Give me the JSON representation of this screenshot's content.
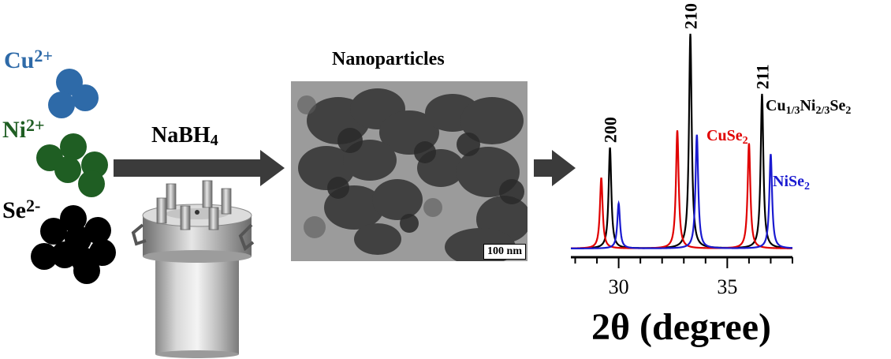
{
  "ions": {
    "cu": {
      "symbol": "Cu",
      "charge": "2+",
      "color": "#2e6aa8"
    },
    "ni": {
      "symbol": "Ni",
      "charge": "2+",
      "color": "#1f5e23"
    },
    "se": {
      "symbol": "Se",
      "charge": "2-",
      "color": "#000000"
    }
  },
  "reagent": {
    "name": "NaBH",
    "subscript": "4"
  },
  "tem": {
    "title": "Nanoparticles",
    "scale_bar": "100 nm"
  },
  "chart_data": {
    "type": "line",
    "xlabel": "2θ (degree)",
    "xticks": [
      "30",
      "35"
    ],
    "xlim": [
      27.8,
      38.0
    ],
    "series": [
      {
        "name": "Cu1/3Ni2/3Se2",
        "color": "#000000",
        "peaks": [
          [
            29.6,
            0.47
          ],
          [
            33.3,
            1.0
          ],
          [
            36.6,
            0.72
          ]
        ]
      },
      {
        "name": "CuSe2",
        "color": "#e00000",
        "peaks": [
          [
            29.2,
            0.33
          ],
          [
            32.7,
            0.55
          ],
          [
            36.0,
            0.49
          ]
        ]
      },
      {
        "name": "NiSe2",
        "color": "#1a1ad0",
        "peaks": [
          [
            30.0,
            0.21
          ],
          [
            33.6,
            0.53
          ],
          [
            37.0,
            0.44
          ]
        ]
      }
    ],
    "peak_labels": [
      {
        "text": "200",
        "x": 29.6
      },
      {
        "text": "210",
        "x": 33.3
      },
      {
        "text": "211",
        "x": 36.6
      }
    ],
    "legend_labels": {
      "main": "Cu",
      "cuse2": "CuSe",
      "nise2": "NiSe"
    }
  }
}
